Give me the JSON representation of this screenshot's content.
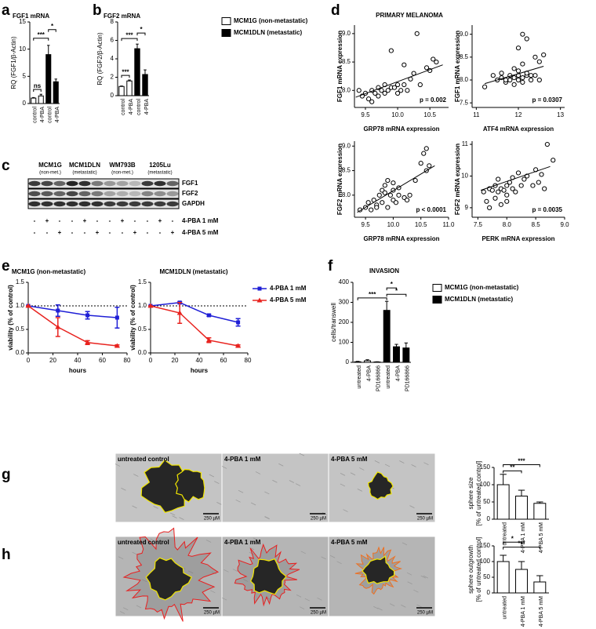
{
  "panel_labels": [
    "a",
    "b",
    "c",
    "d",
    "e",
    "f",
    "g",
    "h"
  ],
  "panel_d": {
    "title": "PRIMARY MELANOMA"
  },
  "blot": {
    "cell_lines": [
      {
        "name": "MCM1G",
        "status": "(non-met.)"
      },
      {
        "name": "MCM1DLN",
        "status": "(metastatic)"
      },
      {
        "name": "WM793B",
        "status": "(non-met.)"
      },
      {
        "name": "1205Lu",
        "status": "(metastatic)"
      }
    ],
    "proteins": [
      "FGF1",
      "FGF2",
      "GAPDH"
    ],
    "treatments": [
      {
        "name": "4-PBA 1 mM",
        "lanes": [
          "-",
          "+",
          "-",
          "-",
          "+",
          "-",
          "-",
          "+",
          "-",
          "-",
          "+",
          "-"
        ]
      },
      {
        "name": "4-PBA 5 mM",
        "lanes": [
          "-",
          "-",
          "+",
          "-",
          "-",
          "+",
          "-",
          "-",
          "+",
          "-",
          "-",
          "+"
        ]
      }
    ]
  },
  "images": {
    "g": {
      "conditions": [
        "untreated control",
        "4-PBA 1 mM",
        "4-PBA 5 mM"
      ],
      "scale_bar": "250 µM"
    },
    "h": {
      "conditions": [
        "untreated control",
        "4-PBA 1 mM",
        "4-PBA 5 mM"
      ],
      "scale_bar": "250 µM"
    }
  },
  "chart_data": [
    {
      "type": "bar",
      "title": "FGF1 mRNA",
      "ylabel": "RQ (FGF1/β-Actin)",
      "categories": [
        "control",
        "4-PBA",
        "control",
        "4-PBA"
      ],
      "values": [
        1.0,
        1.4,
        9.0,
        4.0
      ],
      "errors": [
        0.1,
        0.3,
        1.7,
        0.5
      ],
      "colors": [
        "#ffffff",
        "#ffffff",
        "#000000",
        "#000000"
      ],
      "ylim": [
        0,
        15
      ],
      "yticks": [
        0,
        5,
        10,
        15
      ],
      "significance": [
        "ns",
        "***",
        "*"
      ]
    },
    {
      "type": "bar",
      "title": "FGF2 mRNA",
      "ylabel": "RQ (FGF2/β-Actin)",
      "categories": [
        "control",
        "4-PBA",
        "control",
        "4-PBA"
      ],
      "values": [
        1.0,
        1.6,
        5.1,
        2.3
      ],
      "errors": [
        0.05,
        0.1,
        0.5,
        0.5
      ],
      "colors": [
        "#ffffff",
        "#ffffff",
        "#000000",
        "#000000"
      ],
      "ylim": [
        0,
        8
      ],
      "yticks": [
        0,
        2,
        4,
        6,
        8
      ],
      "significance": [
        "***",
        "***",
        "*"
      ],
      "legend": [
        {
          "name": "MCM1G (non-metastatic)",
          "color": "#ffffff"
        },
        {
          "name": "MCM1DLN (metastatic)",
          "color": "#000000"
        }
      ]
    },
    {
      "type": "scatter",
      "xlabel": "GRP78 mRNA expression",
      "ylabel": "FGF1 mRNA expression",
      "x": [
        9.4,
        9.45,
        9.5,
        9.55,
        9.6,
        9.6,
        9.65,
        9.7,
        9.7,
        9.75,
        9.8,
        9.8,
        9.85,
        9.9,
        9.95,
        10.0,
        10.0,
        10.05,
        10.1,
        10.1,
        10.15,
        10.2,
        10.25,
        10.3,
        10.35,
        10.45,
        10.5,
        10.55,
        10.6,
        9.9
      ],
      "values": [
        8.0,
        7.9,
        7.95,
        7.85,
        8.0,
        7.8,
        7.95,
        8.05,
        7.9,
        8.0,
        8.1,
        7.95,
        8.0,
        8.05,
        8.05,
        8.1,
        7.95,
        8.0,
        8.45,
        8.1,
        8.0,
        8.2,
        8.3,
        9.0,
        8.1,
        8.4,
        8.35,
        8.55,
        8.5,
        8.7
      ],
      "fit": {
        "x": [
          9.35,
          10.7
        ],
        "values": [
          7.88,
          8.45
        ]
      },
      "xlim": [
        9.33,
        10.79
      ],
      "xticks": [
        9.5,
        {
          "value": 10,
          "label": "10.0"
        },
        10.5
      ],
      "ylim": [
        7.7,
        9.15
      ],
      "yticks": [
        {
          "value": 8,
          "label": "8.0"
        },
        8.5,
        {
          "value": 9,
          "label": "9.0"
        }
      ],
      "annotation": "p = 0.002"
    },
    {
      "type": "scatter",
      "xlabel": "ATF4 mRNA expression",
      "ylabel": "FGF1 mRNA expression",
      "x": [
        11.2,
        11.4,
        11.5,
        11.6,
        11.7,
        11.8,
        11.8,
        11.9,
        11.9,
        12.0,
        12.0,
        12.0,
        12.1,
        12.1,
        12.2,
        12.2,
        12.3,
        12.3,
        12.4,
        12.5,
        12.6,
        12.1,
        12.0,
        11.9,
        12.2,
        11.7,
        12.4,
        12.5,
        12.1,
        11.6
      ],
      "values": [
        7.85,
        8.1,
        8.0,
        8.05,
        7.95,
        8.1,
        8.0,
        8.05,
        7.9,
        8.0,
        8.1,
        8.2,
        8.05,
        7.95,
        8.1,
        8.9,
        8.0,
        8.1,
        8.5,
        8.4,
        8.55,
        9.0,
        8.7,
        8.25,
        8.15,
        8.0,
        8.1,
        8.0,
        8.35,
        8.15
      ],
      "fit": {
        "x": [
          11.2,
          12.6
        ],
        "values": [
          7.92,
          8.3
        ]
      },
      "xlim": [
        10.9,
        13.1
      ],
      "xticks": [
        11,
        12,
        13
      ],
      "ylim": [
        7.4,
        9.2
      ],
      "yticks": [
        7.5,
        {
          "value": 8,
          "label": "8.0"
        },
        8.5,
        {
          "value": 9,
          "label": "9.0"
        }
      ],
      "annotation": "p = 0.0307"
    },
    {
      "type": "scatter",
      "xlabel": "GRP78 mRNA expression",
      "ylabel": "FGF2 mRNA expression",
      "x": [
        9.4,
        9.5,
        9.55,
        9.6,
        9.65,
        9.7,
        9.75,
        9.8,
        9.8,
        9.85,
        9.9,
        9.9,
        9.95,
        10.0,
        10.0,
        10.05,
        10.1,
        10.1,
        10.2,
        10.25,
        10.3,
        10.4,
        10.5,
        10.55,
        10.6,
        10.65,
        9.7,
        9.85,
        10.0,
        10.6
      ],
      "values": [
        7.7,
        7.75,
        7.85,
        7.7,
        7.9,
        7.8,
        8.0,
        8.1,
        7.85,
        8.05,
        7.75,
        8.3,
        8.0,
        8.1,
        7.9,
        7.85,
        8.0,
        8.15,
        7.95,
        7.9,
        8.0,
        8.3,
        8.65,
        8.85,
        8.5,
        8.6,
        7.75,
        8.2,
        8.25,
        8.95
      ],
      "fit": {
        "x": [
          9.35,
          10.75
        ],
        "values": [
          7.65,
          8.6
        ]
      },
      "xlim": [
        9.3,
        11.0
      ],
      "xticks": [
        9.5,
        {
          "value": 10,
          "label": "10.0"
        },
        10.5,
        {
          "value": 11,
          "label": "11.0"
        }
      ],
      "ylim": [
        7.55,
        9.1
      ],
      "yticks": [
        {
          "value": 8,
          "label": "8.0"
        },
        8.5,
        {
          "value": 9,
          "label": "9.0"
        }
      ],
      "annotation": "p < 0.0001"
    },
    {
      "type": "scatter",
      "xlabel": "PERK mRNA expression",
      "ylabel": "FGF2 mRNA expression",
      "x": [
        7.6,
        7.65,
        7.7,
        7.7,
        7.75,
        7.8,
        7.8,
        7.85,
        7.9,
        7.9,
        7.95,
        8.0,
        8.0,
        8.05,
        8.1,
        8.1,
        8.15,
        8.2,
        8.25,
        8.3,
        8.35,
        8.5,
        8.55,
        8.6,
        8.7,
        8.8,
        7.85,
        8.0,
        8.45,
        8.65
      ],
      "values": [
        9.5,
        9.2,
        9.6,
        9.0,
        9.55,
        9.3,
        9.7,
        9.5,
        9.6,
        9.1,
        9.55,
        9.7,
        9.4,
        9.8,
        9.6,
        9.95,
        9.5,
        10.1,
        9.7,
        9.9,
        10.0,
        10.2,
        9.8,
        10.05,
        11.0,
        10.5,
        9.9,
        9.2,
        9.7,
        9.6
      ],
      "fit": {
        "x": [
          7.55,
          8.75
        ],
        "values": [
          9.55,
          10.3
        ]
      },
      "xlim": [
        7.4,
        9.0
      ],
      "xticks": [
        7.5,
        {
          "value": 8,
          "label": "8.0"
        },
        8.5,
        {
          "value": 9,
          "label": "9.0"
        }
      ],
      "ylim": [
        8.7,
        11.1
      ],
      "yticks": [
        9,
        10,
        11
      ],
      "annotation": "p = 0.0035"
    },
    {
      "type": "line",
      "title": "MCM1G (non-metastatic)",
      "xlabel": "hours",
      "ylabel": "viability (% of control)",
      "x": [
        0,
        24,
        48,
        72
      ],
      "series": [
        {
          "color": "#1f1fd6",
          "marker": "square",
          "values": [
            1.0,
            0.9,
            0.8,
            0.75
          ],
          "errors": [
            0,
            0.12,
            0.08,
            0.22
          ]
        },
        {
          "color": "#e8231f",
          "marker": "triangle",
          "values": [
            1.0,
            0.55,
            0.22,
            0.15
          ],
          "errors": [
            0,
            0.2,
            0.04,
            0.02
          ]
        }
      ],
      "xlim": [
        0,
        80
      ],
      "xticks": [
        0,
        20,
        40,
        60,
        80
      ],
      "ylim": [
        0,
        1.5
      ],
      "yticks": [
        {
          "value": 0,
          "label": "0.0"
        },
        0.5,
        {
          "value": 1,
          "label": "1.0"
        },
        1.5
      ],
      "reference_line": 1.0
    },
    {
      "type": "line",
      "title": "MCM1DLN (metastatic)",
      "xlabel": "hours",
      "ylabel": "viability (% of control)",
      "x": [
        0,
        24,
        48,
        72
      ],
      "series": [
        {
          "name": "4-PBA 1 mM",
          "color": "#1f1fd6",
          "marker": "square",
          "values": [
            1.0,
            1.07,
            0.8,
            0.65
          ],
          "errors": [
            0,
            0.02,
            0.02,
            0.08
          ]
        },
        {
          "name": "4-PBA 5 mM",
          "color": "#e8231f",
          "marker": "triangle",
          "values": [
            1.0,
            0.85,
            0.27,
            0.15
          ],
          "errors": [
            0,
            0.22,
            0.05,
            0.02
          ]
        }
      ],
      "xlim": [
        0,
        80
      ],
      "xticks": [
        0,
        20,
        40,
        60,
        80
      ],
      "ylim": [
        0,
        1.5
      ],
      "yticks": [
        {
          "value": 0,
          "label": "0.0"
        },
        0.5,
        {
          "value": 1,
          "label": "1.0"
        },
        1.5
      ],
      "reference_line": 1.0
    },
    {
      "type": "bar",
      "title": "INVASION",
      "ylabel": "cells/transwell",
      "categories": [
        "untreated",
        "4-PBA",
        "PD166866",
        "untreated",
        "4-PBA",
        "PD166866"
      ],
      "values": [
        3,
        8,
        2,
        260,
        78,
        72
      ],
      "errors": [
        2,
        5,
        1,
        45,
        12,
        25
      ],
      "colors": [
        "#ffffff",
        "#ffffff",
        "#ffffff",
        "#000000",
        "#000000",
        "#000000"
      ],
      "ylim": [
        0,
        400
      ],
      "yticks": [
        0,
        100,
        200,
        300,
        400
      ],
      "significance": [
        "***",
        "*",
        "*"
      ],
      "legend": [
        {
          "name": "MCM1G (non-metastatic)",
          "color": "#ffffff"
        },
        {
          "name": "MCM1DLN (metastatic)",
          "color": "#000000"
        }
      ]
    },
    {
      "type": "bar",
      "ylabel": [
        "sphere size",
        "[% of untreated control]"
      ],
      "categories": [
        "untreated",
        "4-PBA 1 mM",
        "4-PBA 5 mM"
      ],
      "values": [
        100,
        67,
        46
      ],
      "errors": [
        30,
        17,
        4
      ],
      "colors": [
        "#ffffff",
        "#ffffff",
        "#ffffff"
      ],
      "ylim": [
        0,
        150
      ],
      "yticks": [
        0,
        50,
        100,
        150
      ],
      "significance": [
        "**",
        "***"
      ]
    },
    {
      "type": "bar",
      "ylabel": [
        "sphere outgrowth",
        "[% of untreated control]"
      ],
      "categories": [
        "untreated",
        "4-PBA 1 mM",
        "4-PBA 5 mM"
      ],
      "values": [
        100,
        75,
        35
      ],
      "errors": [
        20,
        25,
        20
      ],
      "colors": [
        "#ffffff",
        "#ffffff",
        "#ffffff"
      ],
      "ylim": [
        0,
        150
      ],
      "yticks": [
        0,
        50,
        100,
        150
      ],
      "significance": [
        "*",
        "***"
      ]
    }
  ]
}
